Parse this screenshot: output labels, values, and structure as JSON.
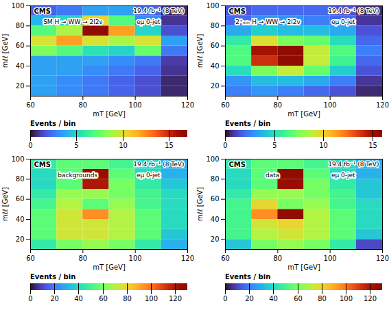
{
  "chart_data": [
    {
      "type": "heatmap",
      "annotations": [
        "CMS",
        "19.4 fb⁻¹ (8 TeV)",
        "SM H → WW → 2l2ν",
        "eμ 0-jet"
      ],
      "xlabel": "mT [GeV]",
      "ylabel": "mℓℓ [GeV]",
      "x_edges": [
        60,
        70,
        80,
        90,
        100,
        110,
        120
      ],
      "y_edges": [
        10,
        20,
        30,
        40,
        50,
        60,
        70,
        80,
        90,
        100
      ],
      "xlim": [
        60,
        120
      ],
      "xticks": [
        60,
        80,
        100,
        120
      ],
      "ylim": [
        10,
        100
      ],
      "yticks": [
        20,
        40,
        60,
        80,
        100
      ],
      "values": [
        [
          3.5,
          3.0,
          2.5,
          2.0,
          1.5,
          0.5
        ],
        [
          3.5,
          3.0,
          2.5,
          2.0,
          1.5,
          0.5
        ],
        [
          3.5,
          3.5,
          3.0,
          2.5,
          2.0,
          0.8
        ],
        [
          3.5,
          3.5,
          3.5,
          3.0,
          2.5,
          1.0
        ],
        [
          8.0,
          7.0,
          5.5,
          5.0,
          7.5,
          2.5
        ],
        [
          10.0,
          12.0,
          10.0,
          9.0,
          10.0,
          3.5
        ],
        [
          7.0,
          9.0,
          17.0,
          12.0,
          5.0,
          1.5
        ],
        [
          4.0,
          5.0,
          10.5,
          7.0,
          3.0,
          0.8
        ],
        [
          2.0,
          2.5,
          3.5,
          3.5,
          2.0,
          0.5
        ]
      ],
      "color_label": "Events / bin",
      "color_range": [
        0,
        17
      ],
      "color_ticks": [
        0,
        5,
        10,
        15
      ]
    },
    {
      "type": "heatmap",
      "annotations": [
        "CMS",
        "19.4 fb⁻¹ (8 TeV)",
        "2⁺ₘᵢₙ H → WW → 2l2ν",
        "eμ 0-jet"
      ],
      "xlabel": "mT [GeV]",
      "ylabel": "mℓℓ [GeV]",
      "x_edges": [
        60,
        70,
        80,
        90,
        100,
        110,
        120
      ],
      "y_edges": [
        10,
        20,
        30,
        40,
        50,
        60,
        70,
        80,
        90,
        100
      ],
      "xlim": [
        60,
        120
      ],
      "xticks": [
        60,
        80,
        100,
        120
      ],
      "ylim": [
        10,
        100
      ],
      "yticks": [
        20,
        40,
        60,
        80,
        100
      ],
      "values": [
        [
          2.5,
          3.0,
          2.5,
          2.0,
          1.5,
          0.5
        ],
        [
          3.0,
          4.0,
          4.0,
          3.5,
          2.5,
          0.8
        ],
        [
          5.0,
          7.5,
          9.0,
          7.0,
          4.5,
          1.5
        ],
        [
          6.5,
          14.0,
          16.0,
          9.0,
          6.0,
          2.0
        ],
        [
          6.5,
          15.0,
          16.0,
          9.0,
          6.5,
          2.5
        ],
        [
          5.5,
          9.5,
          7.5,
          7.0,
          5.0,
          2.0
        ],
        [
          3.5,
          4.5,
          4.0,
          4.0,
          3.5,
          1.5
        ],
        [
          2.0,
          3.0,
          3.0,
          2.5,
          2.0,
          0.8
        ],
        [
          1.5,
          2.0,
          2.0,
          2.0,
          1.5,
          0.5
        ]
      ],
      "color_label": "Events / bin",
      "color_range": [
        0,
        16
      ],
      "color_ticks": [
        0,
        5,
        10,
        15
      ]
    },
    {
      "type": "heatmap",
      "annotations": [
        "CMS",
        "19.4 fb⁻¹ (8 TeV)",
        "backgrounds",
        "eμ 0-jet"
      ],
      "xlabel": "mT [GeV]",
      "ylabel": "mℓℓ [GeV]",
      "x_edges": [
        60,
        70,
        80,
        90,
        100,
        110,
        120
      ],
      "y_edges": [
        10,
        20,
        30,
        40,
        50,
        60,
        70,
        80,
        90,
        100
      ],
      "xlim": [
        60,
        120
      ],
      "xticks": [
        60,
        80,
        100,
        120
      ],
      "ylim": [
        10,
        100
      ],
      "yticks": [
        20,
        40,
        60,
        80,
        100
      ],
      "values": [
        [
          45,
          60,
          65,
          60,
          45,
          30
        ],
        [
          55,
          75,
          75,
          70,
          55,
          35
        ],
        [
          55,
          75,
          75,
          70,
          55,
          40
        ],
        [
          55,
          75,
          95,
          70,
          55,
          40
        ],
        [
          50,
          70,
          55,
          65,
          50,
          40
        ],
        [
          45,
          65,
          65,
          60,
          50,
          40
        ],
        [
          40,
          55,
          120,
          60,
          45,
          35
        ],
        [
          40,
          55,
          125,
          55,
          40,
          30
        ],
        [
          45,
          55,
          55,
          50,
          40,
          30
        ]
      ],
      "color_label": "Events / bin",
      "color_range": [
        0,
        130
      ],
      "color_ticks": [
        0,
        20,
        40,
        60,
        80,
        100,
        120
      ]
    },
    {
      "type": "heatmap",
      "annotations": [
        "CMS",
        "19.4 fb⁻¹ (8 TeV)",
        "data",
        "eμ 0-jet"
      ],
      "xlabel": "mT [GeV]",
      "ylabel": "mℓℓ [GeV]",
      "x_edges": [
        60,
        70,
        80,
        90,
        100,
        110,
        120
      ],
      "y_edges": [
        10,
        20,
        30,
        40,
        50,
        60,
        70,
        80,
        90,
        100
      ],
      "xlim": [
        60,
        120
      ],
      "xticks": [
        60,
        80,
        100,
        120
      ],
      "ylim": [
        10,
        100
      ],
      "yticks": [
        20,
        40,
        60,
        80,
        100
      ],
      "values": [
        [
          35,
          60,
          65,
          60,
          45,
          10
        ],
        [
          50,
          70,
          75,
          70,
          55,
          35
        ],
        [
          50,
          75,
          80,
          70,
          55,
          40
        ],
        [
          50,
          95,
          130,
          70,
          55,
          40
        ],
        [
          50,
          80,
          60,
          65,
          50,
          40
        ],
        [
          45,
          65,
          65,
          60,
          50,
          35
        ],
        [
          40,
          55,
          125,
          60,
          45,
          35
        ],
        [
          40,
          55,
          130,
          55,
          40,
          30
        ],
        [
          45,
          55,
          55,
          50,
          40,
          30
        ]
      ],
      "color_label": "Events / bin",
      "color_range": [
        0,
        130
      ],
      "color_ticks": [
        0,
        20,
        40,
        60,
        80,
        100,
        120
      ]
    }
  ]
}
